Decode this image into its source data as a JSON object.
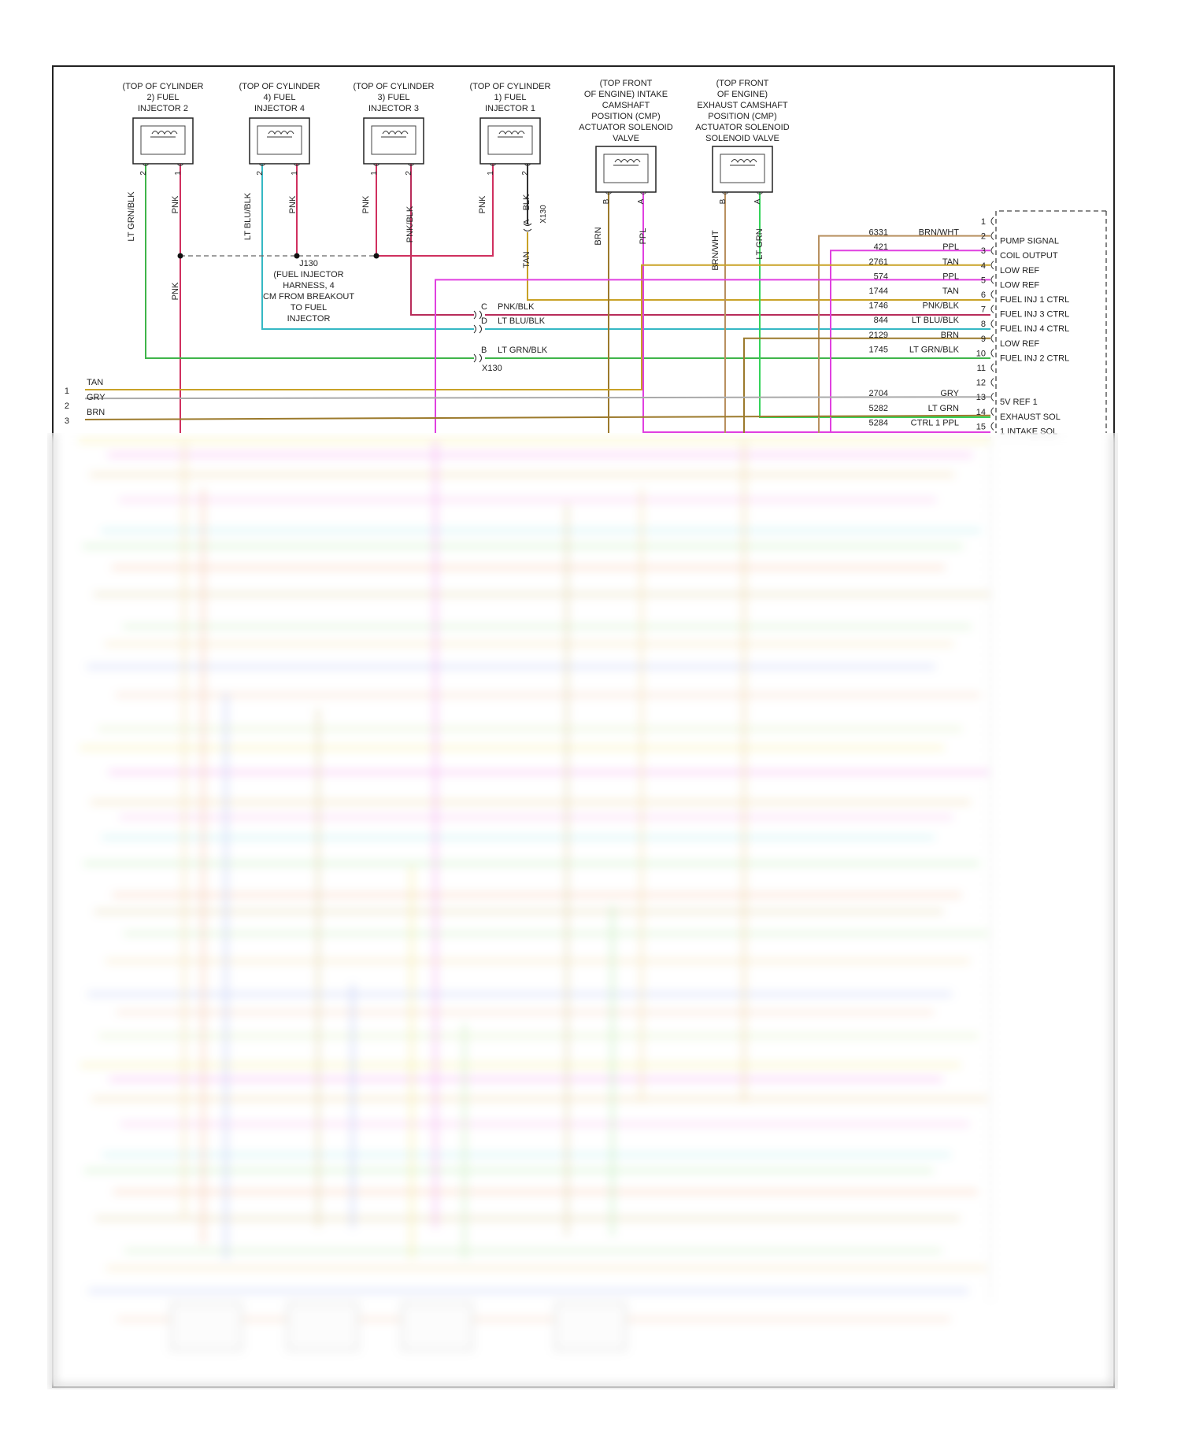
{
  "components": [
    {
      "id": "inj2",
      "lines": [
        "(TOP OF CYLINDER",
        "2) FUEL",
        "INJECTOR 2"
      ],
      "pin_left": "2",
      "pin_right": "1"
    },
    {
      "id": "inj4",
      "lines": [
        "(TOP OF CYLINDER",
        "4) FUEL",
        "INJECTOR 4"
      ],
      "pin_left": "2",
      "pin_right": "1"
    },
    {
      "id": "inj3",
      "lines": [
        "(TOP OF CYLINDER",
        "3) FUEL",
        "INJECTOR 3"
      ],
      "pin_left": "1",
      "pin_right": "2"
    },
    {
      "id": "inj1",
      "lines": [
        "(TOP OF CYLINDER",
        "1) FUEL",
        "INJECTOR 1"
      ],
      "pin_left": "1",
      "pin_right": "2"
    },
    {
      "id": "intake_cmp",
      "lines": [
        "(TOP FRONT",
        "OF ENGINE) INTAKE",
        "CAMSHAFT",
        "POSITION (CMP)",
        "ACTUATOR SOLENOID",
        "VALVE"
      ],
      "pin_left": "B",
      "pin_right": "A"
    },
    {
      "id": "exhaust_cmp",
      "lines": [
        "(TOP FRONT",
        "OF ENGINE)",
        "EXHAUST CAMSHAFT",
        "POSITION (CMP)",
        "ACTUATOR SOLENOID",
        "SOLENOID VALVE"
      ],
      "pin_left": "B",
      "pin_right": "A"
    }
  ],
  "vertical_wire_labels": {
    "inj2_left": "LT GRN/BLK",
    "inj2_right": "PNK",
    "inj4_left": "LT BLU/BLK",
    "inj4_right": "PNK",
    "inj3_left": "PNK",
    "inj3_right": "PNK/BLK",
    "inj1_left": "PNK",
    "inj1_right": "BLK",
    "inj1_tan": "TAN",
    "x130_a_pin": "A",
    "x130_a_name": "X130",
    "intake_left": "BRN",
    "intake_right": "PPL",
    "exhaust_left": "BRN/WHT",
    "exhaust_right": "LT GRN",
    "pnk_down": "PNK"
  },
  "splice": {
    "name": "J130",
    "lines": [
      "(FUEL INJECTOR",
      "HARNESS, 4",
      "CM FROM BREAKOUT",
      "TO FUEL",
      "INJECTOR"
    ]
  },
  "inline_connector": {
    "name": "X130",
    "pins": [
      {
        "pin": "C",
        "color": "PNK/BLK"
      },
      {
        "pin": "D",
        "color": "LT BLU/BLK"
      },
      {
        "pin": "B",
        "color": "LT GRN/BLK"
      }
    ]
  },
  "ecm_pins": [
    {
      "pin": "1",
      "circuit": "",
      "color": "",
      "function": ""
    },
    {
      "pin": "2",
      "circuit": "6331",
      "color": "BRN/WHT",
      "function": "PUMP SIGNAL"
    },
    {
      "pin": "3",
      "circuit": "421",
      "color": "PPL",
      "function": "COIL OUTPUT"
    },
    {
      "pin": "4",
      "circuit": "2761",
      "color": "TAN",
      "function": "LOW REF"
    },
    {
      "pin": "5",
      "circuit": "574",
      "color": "PPL",
      "function": "LOW REF"
    },
    {
      "pin": "6",
      "circuit": "1744",
      "color": "TAN",
      "function": "FUEL INJ 1 CTRL"
    },
    {
      "pin": "7",
      "circuit": "1746",
      "color": "PNK/BLK",
      "function": "FUEL INJ 3 CTRL"
    },
    {
      "pin": "8",
      "circuit": "844",
      "color": "LT BLU/BLK",
      "function": "FUEL INJ 4 CTRL"
    },
    {
      "pin": "9",
      "circuit": "2129",
      "color": "BRN",
      "function": "LOW REF"
    },
    {
      "pin": "10",
      "circuit": "1745",
      "color": "LT GRN/BLK",
      "function": "FUEL INJ 2 CTRL"
    },
    {
      "pin": "11",
      "circuit": "",
      "color": "",
      "function": ""
    },
    {
      "pin": "12",
      "circuit": "",
      "color": "",
      "function": ""
    },
    {
      "pin": "13",
      "circuit": "2704",
      "color": "GRY",
      "function": "5V REF 1"
    },
    {
      "pin": "14",
      "circuit": "5282",
      "color": "LT GRN",
      "function": "EXHAUST SOL"
    },
    {
      "pin": "15",
      "circuit": "5284",
      "color": "CTRL 1 PPL",
      "function": "1 INTAKE SOL"
    }
  ],
  "left_wires": [
    {
      "pin": "1",
      "color": "TAN"
    },
    {
      "pin": "2",
      "color": "GRY"
    },
    {
      "pin": "3",
      "color": "BRN"
    }
  ],
  "wire_colors": {
    "pnk": "#d0305f",
    "ltgrnblk": "#3fb54a",
    "ltblublk": "#36b8c4",
    "pnkblk": "#b82c5a",
    "tan": "#c9a227",
    "brn": "#9c7a2c",
    "ppl": "#e040e0",
    "ltgrn": "#35d35a",
    "gry": "#aaaaaa",
    "brnwht": "#b89060",
    "blk": "#333333",
    "frame": "#222222"
  }
}
